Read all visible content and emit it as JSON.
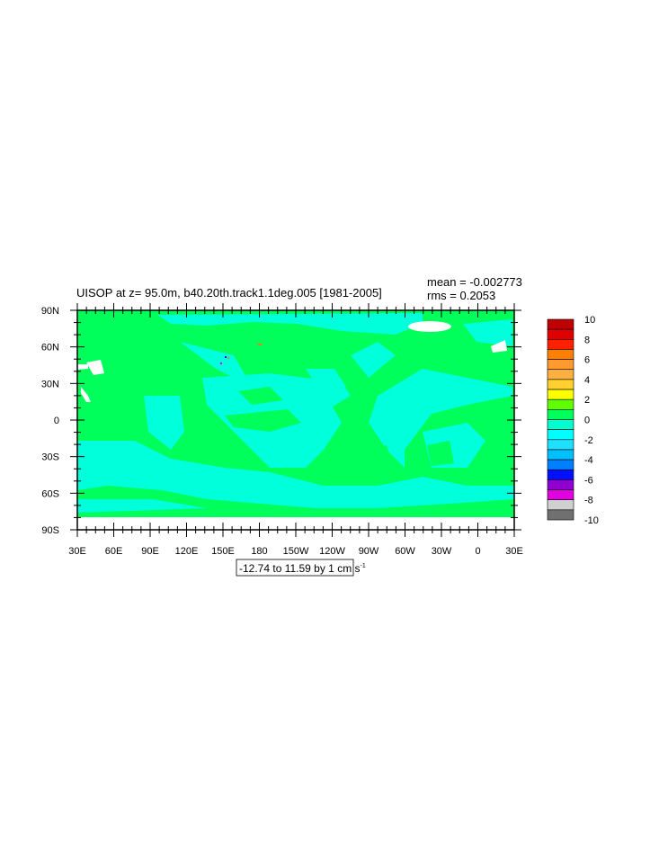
{
  "chart_data": {
    "type": "heatmap",
    "title": "UISOP at z=  95.0m, b40.20th.track1.1deg.005 [1981-2005]",
    "stats": {
      "mean": "mean = -0.002773",
      "rms": "rms = 0.2053"
    },
    "subtitle": "-12.74 to 11.59 by 1 cm s",
    "subtitle_sup": "-1",
    "x_tick_labels": [
      "30E",
      "60E",
      "90E",
      "120E",
      "150E",
      "180",
      "150W",
      "120W",
      "90W",
      "60W",
      "30W",
      "0",
      "30E"
    ],
    "y_tick_labels": [
      "90N",
      "60N",
      "30N",
      "0",
      "30S",
      "60S",
      "90S"
    ],
    "xlim": [
      30,
      390
    ],
    "ylim": [
      -90,
      90
    ],
    "colorbar": {
      "levels": [
        -10,
        -9,
        -8,
        -7,
        -6,
        -5,
        -4,
        -3,
        -2,
        -1,
        0,
        1,
        2,
        3,
        4,
        5,
        6,
        7,
        8,
        9,
        10
      ],
      "labels": [
        "10",
        "8",
        "6",
        "4",
        "2",
        "0",
        "-2",
        "-4",
        "-6",
        "-8",
        "-10"
      ],
      "colors_top_to_bottom": [
        "#c00000",
        "#e00000",
        "#ff2000",
        "#ff8000",
        "#ff9a30",
        "#ffb040",
        "#ffd030",
        "#ffff00",
        "#60ff00",
        "#00ff5a",
        "#00ffd0",
        "#00ffff",
        "#20e0ff",
        "#00c0ff",
        "#0080ff",
        "#0010ff",
        "#9000d0",
        "#e000e0",
        "#d0d0d0",
        "#707070"
      ]
    },
    "dominant_colors": {
      "zero_to_one": "#00ff5a",
      "minus_one_to_zero": "#00ffda",
      "missing": "#ffffff"
    }
  }
}
